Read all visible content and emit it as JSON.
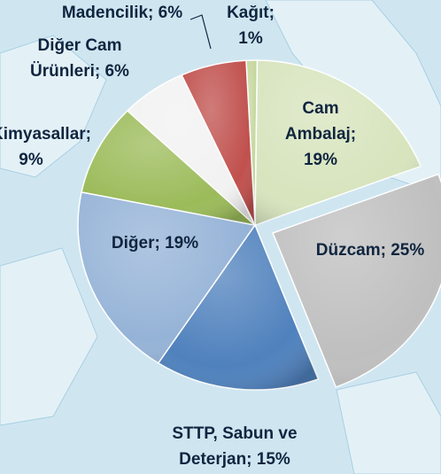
{
  "chart_data": {
    "type": "pie",
    "values": [
      1,
      19,
      25,
      15,
      19,
      9,
      6,
      6
    ],
    "value_labels": [
      [
        "Kağıt;",
        "1%"
      ],
      [
        "Cam",
        "Ambalaj;",
        "19%"
      ],
      [
        "Düzcam; 25%"
      ],
      [
        "STTP, Sabun ve",
        "Deterjan; 15%"
      ],
      [
        "Diğer; 19%"
      ],
      [
        "Kimyasallar;",
        "9%"
      ],
      [
        "Diğer Cam",
        "Ürünleri; 6%"
      ],
      [
        "Madencilik; 6%"
      ]
    ],
    "colors": [
      "#c3d69b",
      "#d7e4bd",
      "#bfbfbf",
      "#4f81bd",
      "#95b3d7",
      "#9bbb59",
      "#f2f2f2",
      "#c0504d"
    ],
    "exploded": [
      false,
      false,
      true,
      false,
      false,
      false,
      false,
      false
    ]
  }
}
